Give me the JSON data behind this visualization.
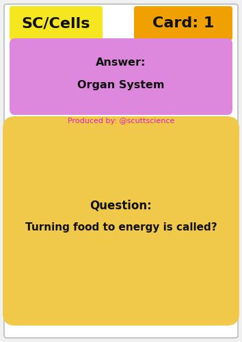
{
  "bg_color": "#f0f0f0",
  "border_color": "#bbbbbb",
  "title_left_text": "SC/Cells",
  "title_left_bg": "#f5e620",
  "title_right_text": "Card: 1",
  "title_right_bg": "#f0a000",
  "answer_box_bg": "#dd88dd",
  "answer_label": "Answer:",
  "answer_text": "Organ System",
  "produced_by": "Produced by: @scuttscience",
  "produced_by_color": "#dd22bb",
  "question_box_bg": "#f0c84a",
  "question_label": "Question:",
  "question_text": "Turning food to energy is called?",
  "text_color": "#111111",
  "white": "#ffffff"
}
